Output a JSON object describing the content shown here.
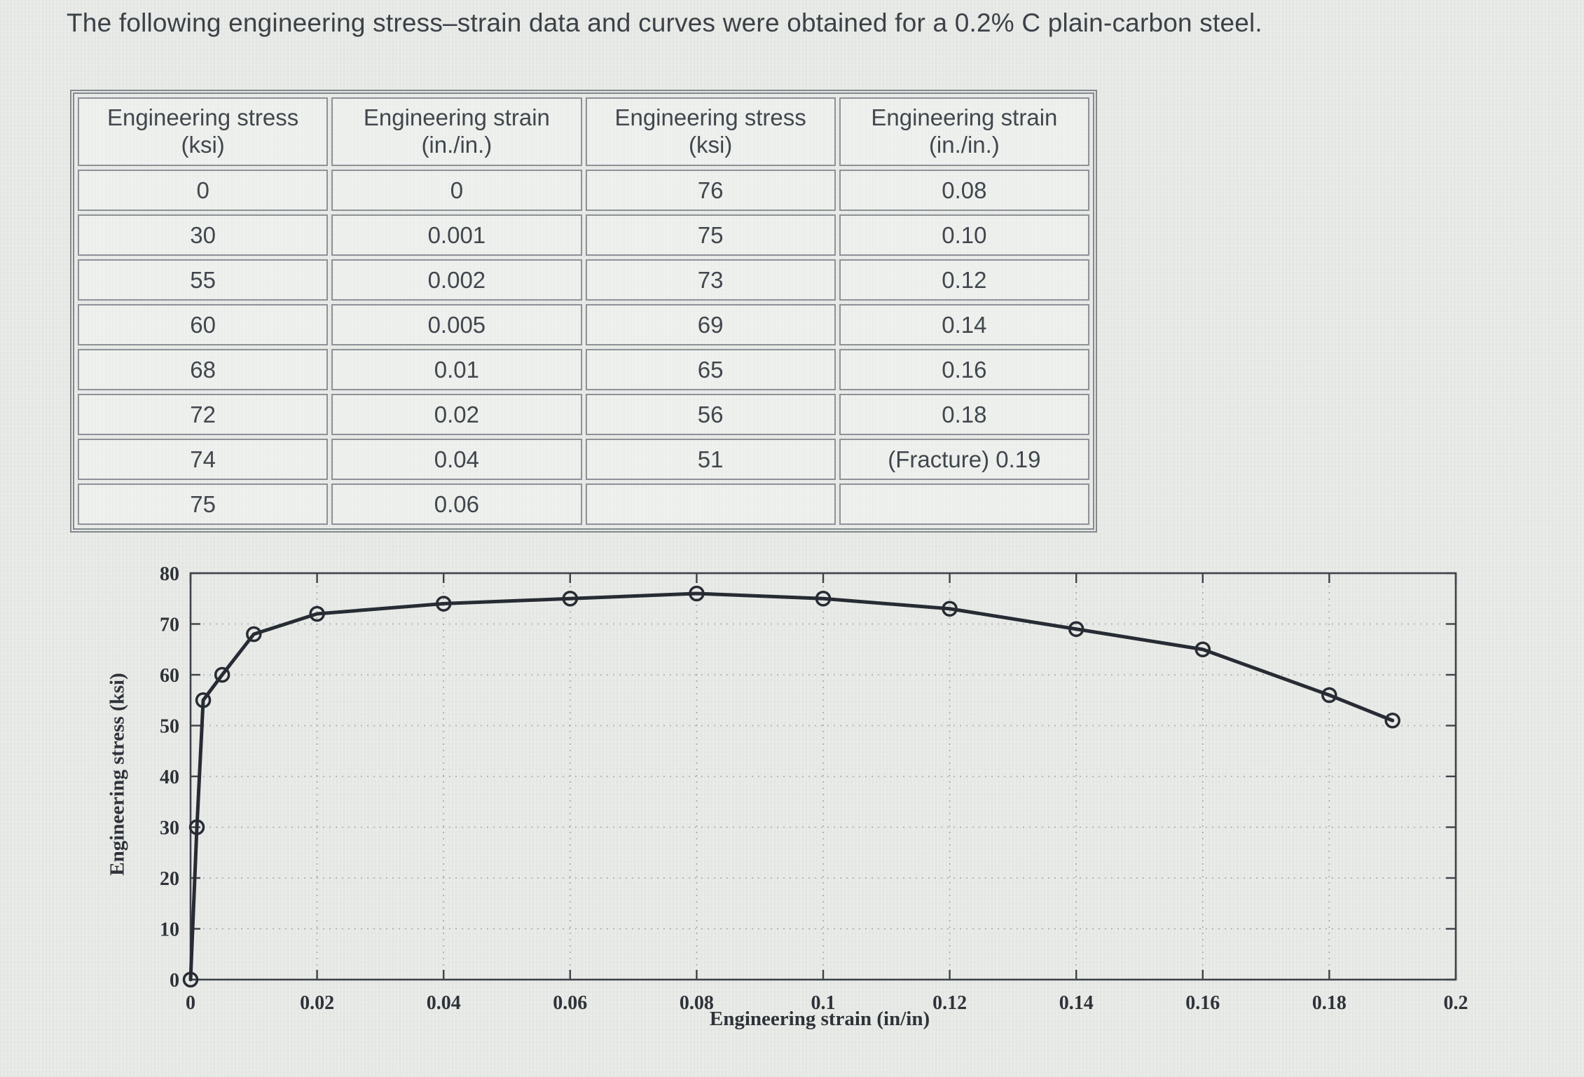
{
  "page": {
    "title": "The following engineering stress–strain data and curves were obtained for a 0.2% C plain-carbon steel."
  },
  "table": {
    "headers": [
      "Engineering stress (ksi)",
      "Engineering strain (in./in.)",
      "Engineering stress (ksi)",
      "Engineering strain (in./in.)"
    ],
    "rows": [
      [
        "0",
        "0",
        "76",
        "0.08"
      ],
      [
        "30",
        "0.001",
        "75",
        "0.10"
      ],
      [
        "55",
        "0.002",
        "73",
        "0.12"
      ],
      [
        "60",
        "0.005",
        "69",
        "0.14"
      ],
      [
        "68",
        "0.01",
        "65",
        "0.16"
      ],
      [
        "72",
        "0.02",
        "56",
        "0.18"
      ],
      [
        "74",
        "0.04",
        "51",
        "(Fracture) 0.19"
      ],
      [
        "75",
        "0.06",
        "",
        ""
      ]
    ]
  },
  "chart_data": {
    "type": "line",
    "title": "",
    "xlabel": "Engineering strain (in/in)",
    "ylabel": "Engineering stress (ksi)",
    "xlim": [
      0,
      0.2
    ],
    "ylim": [
      0,
      80
    ],
    "x_ticks": [
      0,
      0.02,
      0.04,
      0.06,
      0.08,
      0.1,
      0.12,
      0.14,
      0.16,
      0.18,
      0.2
    ],
    "x_tick_labels": [
      "0",
      "0.02",
      "0.04",
      "0.06",
      "0.08",
      "0.1",
      "0.12",
      "0.14",
      "0.16",
      "0.18",
      "0.2"
    ],
    "y_ticks": [
      0,
      10,
      20,
      30,
      40,
      50,
      60,
      70,
      80
    ],
    "y_tick_labels": [
      "0",
      "10",
      "20",
      "30",
      "40",
      "50",
      "60",
      "70",
      "80"
    ],
    "grid": true,
    "legend": "none",
    "marker": "open-circle",
    "line_color": "#272c34",
    "grid_color": "#979da2",
    "series": [
      {
        "name": "engineering stress-strain curve",
        "x": [
          0,
          0.001,
          0.002,
          0.005,
          0.01,
          0.02,
          0.04,
          0.06,
          0.08,
          0.1,
          0.12,
          0.14,
          0.16,
          0.18,
          0.19
        ],
        "y": [
          0,
          30,
          55,
          60,
          68,
          72,
          74,
          75,
          76,
          75,
          73,
          69,
          65,
          56,
          51
        ]
      }
    ]
  }
}
